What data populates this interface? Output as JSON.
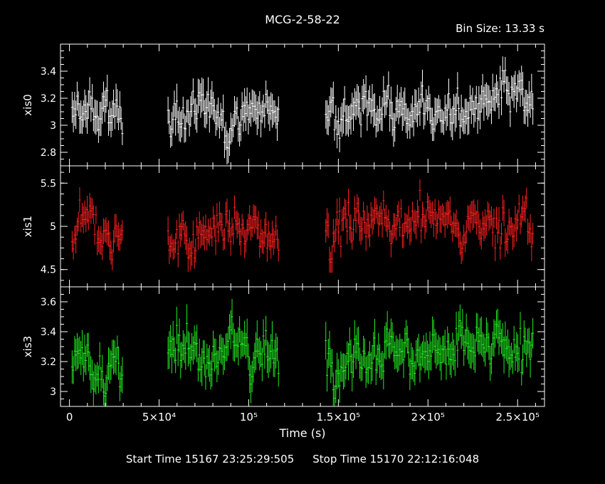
{
  "chart_data": {
    "type": "line",
    "title": "MCG-2-58-22",
    "bin_size_label": "Bin Size:  13.33  s",
    "xlabel": "Time (s)",
    "xlim": [
      -5000,
      265000
    ],
    "x_ticks": [
      {
        "value": 0,
        "label": "0"
      },
      {
        "value": 50000,
        "label": "5×10⁴"
      },
      {
        "value": 100000,
        "label": "10⁵"
      },
      {
        "value": 150000,
        "label": "1.5×10⁵"
      },
      {
        "value": 200000,
        "label": "2×10⁵"
      },
      {
        "value": 250000,
        "label": "2.5×10⁵"
      }
    ],
    "segments": [
      [
        1500,
        30000
      ],
      [
        55000,
        117000
      ],
      [
        143000,
        259000
      ]
    ],
    "bin_step": 700,
    "panels": [
      {
        "name": "xis0",
        "color": "#ffffff",
        "ylim": [
          2.7,
          3.6
        ],
        "yticks": [
          2.8,
          3.0,
          3.2,
          3.4
        ],
        "ytick_labels": [
          "2.8",
          "3",
          "3.2",
          "3.4"
        ],
        "segment_means": [
          3.05,
          3.1,
          3.15
        ],
        "scatter": 0.09,
        "err": 0.1
      },
      {
        "name": "xis1",
        "color": "#ff2020",
        "ylim": [
          4.3,
          5.7
        ],
        "yticks": [
          4.5,
          5.0,
          5.5
        ],
        "ytick_labels": [
          "4.5",
          "5",
          "5.5"
        ],
        "segment_means": [
          4.9,
          4.95,
          5.05
        ],
        "scatter": 0.15,
        "err": 0.13
      },
      {
        "name": "xis3",
        "color": "#22ee22",
        "ylim": [
          2.9,
          3.7
        ],
        "yticks": [
          3.0,
          3.2,
          3.4,
          3.6
        ],
        "ytick_labels": [
          "3",
          "3.2",
          "3.4",
          "3.6"
        ],
        "segment_means": [
          3.2,
          3.25,
          3.28
        ],
        "scatter": 0.09,
        "err": 0.1
      }
    ]
  },
  "footer": {
    "start": "Start Time 15167 23:25:29:505",
    "stop": "Stop Time 15170 22:12:16:048"
  }
}
